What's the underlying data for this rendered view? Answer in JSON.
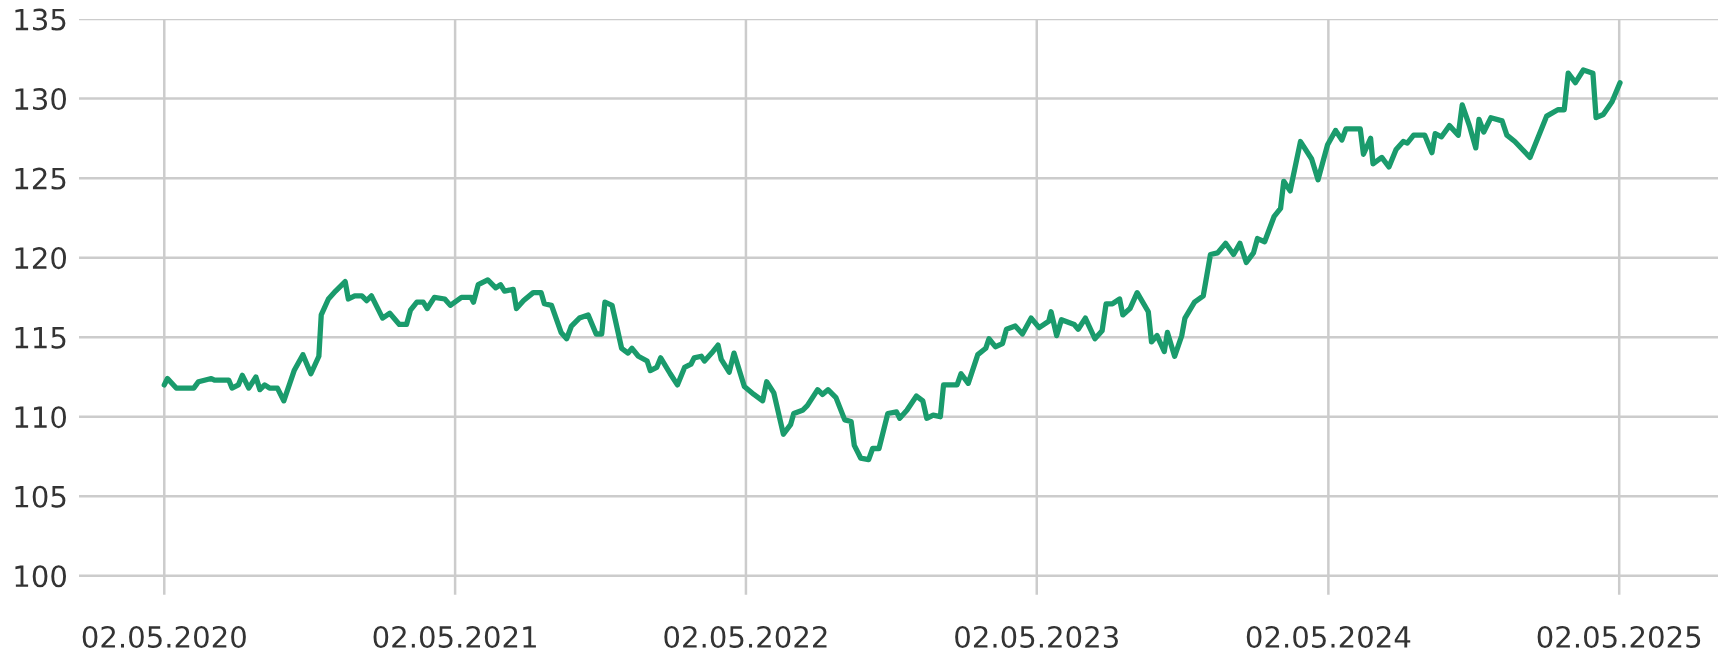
{
  "chart_data": {
    "type": "line",
    "x": [
      "2020-05-02",
      "2020-05-06",
      "2020-05-17",
      "2020-06-08",
      "2020-06-14",
      "2020-06-30",
      "2020-07-04",
      "2020-07-22",
      "2020-07-26",
      "2020-08-03",
      "2020-08-08",
      "2020-08-16",
      "2020-08-25",
      "2020-08-30",
      "2020-09-05",
      "2020-09-11",
      "2020-09-21",
      "2020-09-29",
      "2020-10-12",
      "2020-10-23",
      "2020-11-02",
      "2020-11-12",
      "2020-11-15",
      "2020-11-24",
      "2020-12-03",
      "2020-12-15",
      "2020-12-19",
      "2020-12-27",
      "2021-01-05",
      "2021-01-11",
      "2021-01-17",
      "2021-01-31",
      "2021-02-09",
      "2021-02-21",
      "2021-03-02",
      "2021-03-07",
      "2021-03-15",
      "2021-03-23",
      "2021-03-28",
      "2021-04-06",
      "2021-04-19",
      "2021-04-26",
      "2021-05-10",
      "2021-05-22",
      "2021-05-25",
      "2021-05-31",
      "2021-06-12",
      "2021-06-22",
      "2021-06-28",
      "2021-07-03",
      "2021-07-14",
      "2021-07-18",
      "2021-07-27",
      "2021-08-08",
      "2021-08-18",
      "2021-08-22",
      "2021-08-31",
      "2021-09-12",
      "2021-09-19",
      "2021-09-25",
      "2021-10-05",
      "2021-10-16",
      "2021-10-26",
      "2021-11-02",
      "2021-11-06",
      "2021-11-15",
      "2021-11-27",
      "2021-12-05",
      "2021-12-10",
      "2021-12-18",
      "2021-12-29",
      "2022-01-02",
      "2022-01-10",
      "2022-01-15",
      "2022-01-27",
      "2022-02-05",
      "2022-02-14",
      "2022-02-22",
      "2022-02-26",
      "2022-03-07",
      "2022-03-11",
      "2022-03-20",
      "2022-03-28",
      "2022-04-01",
      "2022-04-11",
      "2022-04-17",
      "2022-04-30",
      "2022-05-12",
      "2022-05-23",
      "2022-05-28",
      "2022-06-06",
      "2022-06-18",
      "2022-06-27",
      "2022-07-01",
      "2022-07-12",
      "2022-07-18",
      "2022-07-31",
      "2022-08-06",
      "2022-08-13",
      "2022-08-23",
      "2022-09-03",
      "2022-09-11",
      "2022-09-15",
      "2022-09-23",
      "2022-10-03",
      "2022-10-08",
      "2022-10-16",
      "2022-10-27",
      "2022-11-07",
      "2022-11-11",
      "2022-11-20",
      "2022-12-02",
      "2022-12-10",
      "2022-12-15",
      "2022-12-23",
      "2023-01-01",
      "2023-01-05",
      "2023-01-22",
      "2023-01-27",
      "2023-02-05",
      "2023-02-17",
      "2023-02-27",
      "2023-03-03",
      "2023-03-11",
      "2023-03-20",
      "2023-03-25",
      "2023-04-05",
      "2023-04-14",
      "2023-04-25",
      "2023-05-05",
      "2023-05-17",
      "2023-05-20",
      "2023-05-27",
      "2023-06-02",
      "2023-06-18",
      "2023-06-23",
      "2023-07-02",
      "2023-07-14",
      "2023-07-23",
      "2023-07-28",
      "2023-08-05",
      "2023-08-14",
      "2023-08-18",
      "2023-08-27",
      "2023-09-05",
      "2023-09-19",
      "2023-09-23",
      "2023-09-30",
      "2023-10-09",
      "2023-10-13",
      "2023-10-22",
      "2023-10-31",
      "2023-11-04",
      "2023-11-16",
      "2023-11-27",
      "2023-12-06",
      "2023-12-15",
      "2023-12-25",
      "2024-01-04",
      "2024-01-12",
      "2024-01-20",
      "2024-01-29",
      "2024-02-03",
      "2024-02-12",
      "2024-02-24",
      "2024-03-03",
      "2024-03-07",
      "2024-03-15",
      "2024-03-28",
      "2024-04-11",
      "2024-04-19",
      "2024-05-01",
      "2024-05-11",
      "2024-05-19",
      "2024-05-24",
      "2024-06-11",
      "2024-06-15",
      "2024-06-24",
      "2024-06-27",
      "2024-07-08",
      "2024-07-17",
      "2024-07-26",
      "2024-08-04",
      "2024-08-09",
      "2024-08-17",
      "2024-08-31",
      "2024-09-09",
      "2024-09-13",
      "2024-09-21",
      "2024-10-01",
      "2024-10-12",
      "2024-10-17",
      "2024-10-26",
      "2024-11-03",
      "2024-11-07",
      "2024-11-13",
      "2024-11-22",
      "2024-12-06",
      "2024-12-12",
      "2024-12-22",
      "2025-01-10",
      "2025-01-31",
      "2025-02-14",
      "2025-02-22",
      "2025-02-27",
      "2025-03-08",
      "2025-03-18",
      "2025-03-30",
      "2025-04-03",
      "2025-04-12",
      "2025-04-23",
      "2025-05-03"
    ],
    "series": [
      {
        "color": "#1a9b6c",
        "values": [
          112.0,
          112.4,
          111.8,
          111.8,
          112.2,
          112.4,
          112.3,
          112.3,
          111.8,
          112.0,
          112.6,
          111.8,
          112.5,
          111.7,
          112.0,
          111.8,
          111.8,
          111.0,
          112.9,
          113.9,
          112.7,
          113.8,
          116.4,
          117.4,
          117.9,
          118.5,
          117.4,
          117.6,
          117.6,
          117.3,
          117.6,
          116.2,
          116.5,
          115.8,
          115.8,
          116.7,
          117.2,
          117.2,
          116.8,
          117.5,
          117.4,
          117.0,
          117.5,
          117.5,
          117.2,
          118.3,
          118.6,
          118.1,
          118.3,
          117.9,
          118.0,
          116.8,
          117.3,
          117.8,
          117.8,
          117.1,
          117.0,
          115.3,
          114.9,
          115.7,
          116.2,
          116.4,
          115.2,
          115.2,
          117.2,
          117.0,
          114.3,
          114.0,
          114.3,
          113.8,
          113.5,
          112.9,
          113.1,
          113.7,
          112.7,
          112.0,
          113.1,
          113.3,
          113.7,
          113.8,
          113.5,
          114.0,
          114.5,
          113.6,
          112.8,
          114.0,
          111.9,
          111.4,
          111.0,
          112.2,
          111.5,
          108.9,
          109.5,
          110.2,
          110.4,
          110.7,
          111.7,
          111.4,
          111.7,
          111.2,
          109.8,
          109.7,
          108.2,
          107.4,
          107.3,
          108.0,
          108.0,
          110.2,
          110.3,
          109.9,
          110.4,
          111.3,
          111.0,
          109.9,
          110.1,
          110.0,
          112.0,
          112.0,
          112.7,
          112.1,
          113.9,
          114.3,
          114.9,
          114.4,
          114.6,
          115.5,
          115.7,
          115.2,
          116.2,
          115.6,
          116.0,
          116.6,
          115.1,
          116.1,
          115.8,
          115.5,
          116.2,
          114.9,
          115.4,
          117.1,
          117.1,
          117.4,
          116.4,
          116.8,
          117.8,
          116.6,
          114.7,
          115.1,
          114.1,
          115.3,
          113.8,
          115.1,
          116.2,
          117.2,
          117.6,
          120.2,
          120.3,
          120.9,
          120.2,
          120.9,
          119.7,
          120.3,
          121.2,
          121.0,
          122.6,
          123.1,
          124.8,
          124.2,
          127.3,
          126.2,
          124.9,
          127.1,
          128.0,
          127.4,
          128.1,
          128.1,
          126.5,
          127.5,
          125.9,
          126.3,
          125.7,
          126.8,
          127.3,
          127.2,
          127.7,
          127.7,
          126.6,
          127.8,
          127.6,
          128.3,
          127.7,
          129.6,
          128.3,
          126.9,
          128.7,
          127.9,
          128.8,
          128.6,
          127.7,
          127.3,
          126.3,
          128.9,
          129.3,
          129.3,
          131.6,
          131.0,
          131.8,
          131.6,
          128.8,
          129.0,
          129.8,
          131.0
        ]
      }
    ],
    "xlim": [
      "2020-01-16",
      "2025-09-03"
    ],
    "xticks": [
      {
        "value": "2020-05-02",
        "label": "02.05.2020"
      },
      {
        "value": "2021-05-02",
        "label": "02.05.2021"
      },
      {
        "value": "2022-05-02",
        "label": "02.05.2022"
      },
      {
        "value": "2023-05-02",
        "label": "02.05.2023"
      },
      {
        "value": "2024-05-02",
        "label": "02.05.2024"
      },
      {
        "value": "2025-05-02",
        "label": "02.05.2025"
      }
    ],
    "ylim": [
      98.8,
      135
    ],
    "yticks": [
      100,
      105,
      110,
      115,
      120,
      125,
      130,
      135
    ],
    "grid": true,
    "marker": "none",
    "line_style": "solid"
  }
}
